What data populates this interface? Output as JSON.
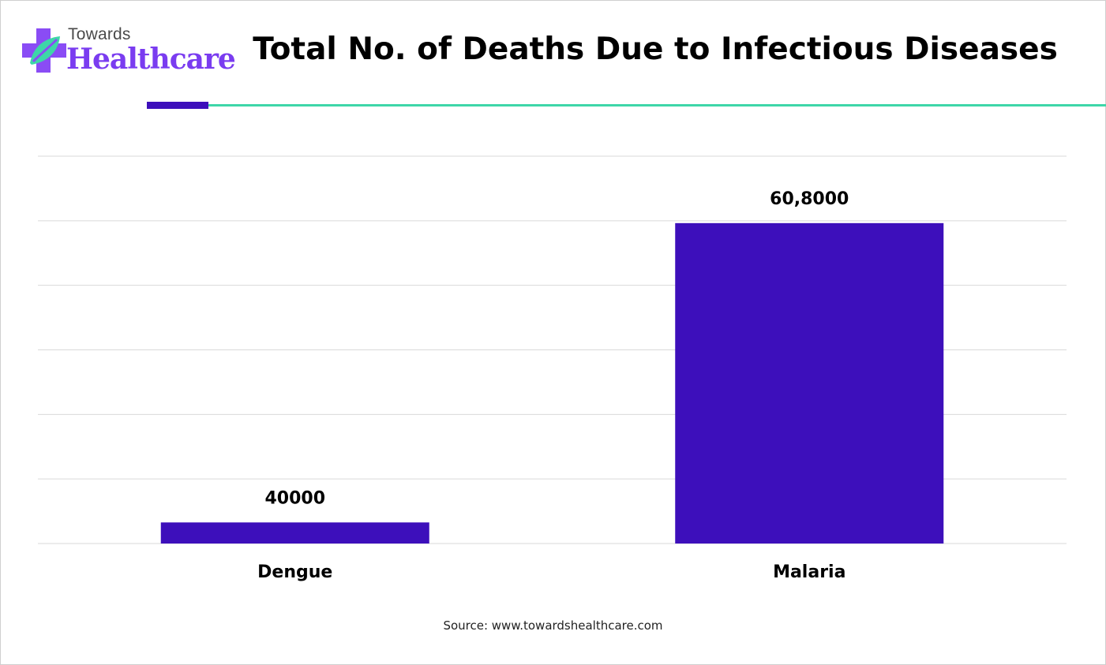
{
  "brand": {
    "line1": "Towards",
    "line2": "Healthcare",
    "icon": "medical-cross-leaf-icon",
    "colors": {
      "purple": "#7a3cf0",
      "green": "#3ed6a8",
      "dark": "#3d0fbb"
    }
  },
  "source": "Source: www.towardshealthcare.com",
  "chart_data": {
    "type": "bar",
    "title": "Total No. of Deaths Due to Infectious Diseases",
    "xlabel": "",
    "ylabel": "",
    "categories": [
      "Dengue",
      "Malaria"
    ],
    "values": [
      40000,
      608000
    ],
    "data_labels": [
      "40000",
      "60,8000"
    ],
    "ylim": [
      0,
      735000
    ],
    "grid": true,
    "legend": "none",
    "bar_color": "#3d0fbb"
  }
}
